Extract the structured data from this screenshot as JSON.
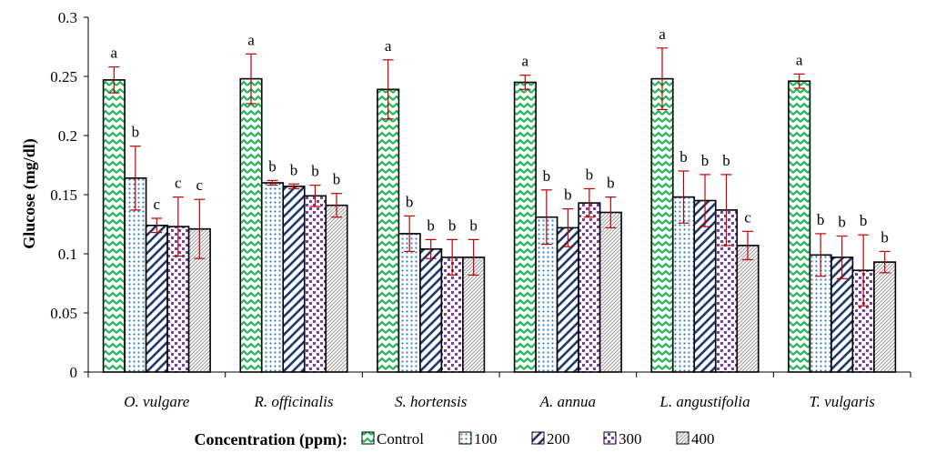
{
  "chart_data": {
    "type": "bar",
    "title": "",
    "xlabel": "",
    "ylabel": "Glucose (mg/dl)",
    "ylim": [
      0,
      0.3
    ],
    "yticks": [
      "0",
      "0.05",
      "0.1",
      "0.15",
      "0.2",
      "0.25",
      "0.3"
    ],
    "grid": false,
    "legend": {
      "position": "bottom",
      "title": "Concentration (ppm):"
    },
    "categories": [
      "O. vulgare",
      "R. officinalis",
      "S. hortensis",
      "A. annua",
      "L. angustifolia",
      "T. vulgaris"
    ],
    "series": [
      {
        "name": "Control",
        "values": [
          0.247,
          0.248,
          0.239,
          0.245,
          0.248,
          0.246
        ],
        "errors": [
          0.011,
          0.021,
          0.025,
          0.006,
          0.026,
          0.006
        ],
        "labels": [
          "a",
          "a",
          "a",
          "a",
          "a",
          "a"
        ],
        "pattern": "green-zigzag"
      },
      {
        "name": "100",
        "values": [
          0.164,
          0.16,
          0.117,
          0.131,
          0.148,
          0.099
        ],
        "errors": [
          0.027,
          0.002,
          0.015,
          0.023,
          0.022,
          0.018
        ],
        "labels": [
          "b",
          "b",
          "b",
          "b",
          "b",
          "b"
        ],
        "pattern": "blue-dots"
      },
      {
        "name": "200",
        "values": [
          0.124,
          0.157,
          0.104,
          0.122,
          0.145,
          0.097
        ],
        "errors": [
          0.006,
          0.002,
          0.008,
          0.016,
          0.022,
          0.018
        ],
        "labels": [
          "c",
          "b",
          "b",
          "b",
          "b",
          "b"
        ],
        "pattern": "navy-diagonal"
      },
      {
        "name": "300",
        "values": [
          0.123,
          0.149,
          0.097,
          0.143,
          0.137,
          0.086
        ],
        "errors": [
          0.025,
          0.009,
          0.015,
          0.012,
          0.03,
          0.03
        ],
        "labels": [
          "c",
          "b",
          "b",
          "b",
          "b",
          "b"
        ],
        "pattern": "purple-checker"
      },
      {
        "name": "400",
        "values": [
          0.121,
          0.141,
          0.097,
          0.135,
          0.107,
          0.093
        ],
        "errors": [
          0.025,
          0.01,
          0.015,
          0.013,
          0.012,
          0.009
        ],
        "labels": [
          "c",
          "b",
          "b",
          "b",
          "c",
          "b"
        ],
        "pattern": "gray-diagonal"
      }
    ],
    "colors": {
      "error_bar": "#c00000",
      "axis": "#000000",
      "bar_outline": "#000000"
    }
  }
}
